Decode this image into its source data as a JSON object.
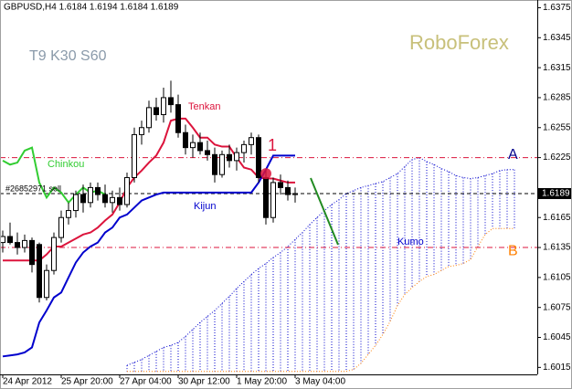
{
  "chart_data": {
    "type": "candlestick",
    "header": "GBPUSD,H4  1.6184 1.6194 1.6184 1.6189",
    "settings_label": "T9 K30 S60",
    "watermark": "RoboForex",
    "ylim": [
      1.6008,
      1.638
    ],
    "yticks": [
      1.6015,
      1.6045,
      1.6075,
      1.6105,
      1.6135,
      1.6165,
      1.6225,
      1.6255,
      1.6285,
      1.6315,
      1.6345,
      1.6375
    ],
    "xticks": [
      {
        "value": 0,
        "label": "24 Apr 2012"
      },
      {
        "value": 8,
        "label": "25 Apr 20:00"
      },
      {
        "value": 16,
        "label": "27 Apr 04:00"
      },
      {
        "value": 24,
        "label": "30 Apr 12:00"
      },
      {
        "value": 32,
        "label": "1 May 20:00"
      },
      {
        "value": 40,
        "label": "3 May 04:00"
      }
    ],
    "open": [
      1.614,
      1.6146,
      1.614,
      1.6135,
      1.6142,
      1.6138,
      1.6085,
      1.6112,
      1.6145,
      1.6165,
      1.6172,
      1.6188,
      1.618,
      1.6195,
      1.6188,
      1.618,
      1.6185,
      1.6178,
      1.6205,
      1.6248,
      1.6255,
      1.6275,
      1.6268,
      1.6285,
      1.6278,
      1.625,
      1.6235,
      1.624,
      1.6232,
      1.6228,
      1.6208,
      1.6228,
      1.6222,
      1.623,
      1.6238,
      1.6245,
      1.6205,
      1.6165,
      1.62,
      1.6195,
      1.6188
    ],
    "high": [
      1.6152,
      1.616,
      1.615,
      1.6148,
      1.6145,
      1.614,
      1.6118,
      1.615,
      1.6172,
      1.618,
      1.6192,
      1.6198,
      1.62,
      1.62,
      1.6198,
      1.6192,
      1.6195,
      1.621,
      1.6255,
      1.6262,
      1.6282,
      1.6285,
      1.6295,
      1.6302,
      1.6288,
      1.6258,
      1.6248,
      1.625,
      1.6242,
      1.6235,
      1.6232,
      1.6238,
      1.6235,
      1.6242,
      1.625,
      1.6248,
      1.6212,
      1.6205,
      1.6208,
      1.6202,
      1.6195
    ],
    "low": [
      1.613,
      1.6138,
      1.6128,
      1.613,
      1.611,
      1.608,
      1.6082,
      1.6108,
      1.614,
      1.6158,
      1.6165,
      1.617,
      1.6175,
      1.6182,
      1.6175,
      1.617,
      1.6172,
      1.6175,
      1.62,
      1.6238,
      1.625,
      1.6262,
      1.626,
      1.627,
      1.6245,
      1.6228,
      1.6225,
      1.6228,
      1.6222,
      1.62,
      1.6205,
      1.6215,
      1.6212,
      1.622,
      1.6228,
      1.62,
      1.6158,
      1.616,
      1.6188,
      1.6182,
      1.618
    ],
    "close": [
      1.6146,
      1.614,
      1.6135,
      1.6142,
      1.6118,
      1.6085,
      1.6112,
      1.6145,
      1.6165,
      1.6172,
      1.6188,
      1.618,
      1.6195,
      1.6188,
      1.618,
      1.6185,
      1.6178,
      1.6205,
      1.6248,
      1.6255,
      1.6275,
      1.6268,
      1.6285,
      1.6278,
      1.625,
      1.6235,
      1.624,
      1.6232,
      1.6228,
      1.6208,
      1.6228,
      1.6222,
      1.623,
      1.6238,
      1.6245,
      1.6205,
      1.6165,
      1.62,
      1.6195,
      1.6188,
      1.6189
    ],
    "bull_color": "#ffffff",
    "bear_color": "#000000",
    "lines": [
      {
        "name": "Tenkan",
        "color": "#dc143c",
        "values": [
          1.6122,
          1.6122,
          1.6122,
          1.6122,
          1.6122,
          1.6122,
          1.6128,
          1.6136,
          1.6136,
          1.614,
          1.6144,
          1.6148,
          1.615,
          1.6155,
          1.6162,
          1.6168,
          1.618,
          1.6195,
          1.6205,
          1.6212,
          1.622,
          1.6227,
          1.624,
          1.6262,
          1.6264,
          1.6264,
          1.6255,
          1.6245,
          1.6245,
          1.6238,
          1.6236,
          1.6236,
          1.6225,
          1.6215,
          1.6213,
          1.6205,
          1.6204,
          1.6204,
          1.6202,
          1.62,
          1.62
        ]
      },
      {
        "name": "Kijun",
        "color": "#0000cd",
        "values": [
          1.6026,
          1.6027,
          1.6028,
          1.603,
          1.6035,
          1.606,
          1.6072,
          1.6085,
          1.609,
          1.6105,
          1.612,
          1.613,
          1.6136,
          1.614,
          1.615,
          1.6155,
          1.6165,
          1.6168,
          1.6175,
          1.6182,
          1.6185,
          1.6188,
          1.619,
          1.619,
          1.619,
          1.619,
          1.619,
          1.619,
          1.619,
          1.619,
          1.619,
          1.619,
          1.619,
          1.619,
          1.619,
          1.62,
          1.6213,
          1.6227,
          1.6227,
          1.6227,
          1.6227
        ]
      },
      {
        "name": "Chinkou",
        "color": "#32cd32",
        "values": [
          1.6222,
          1.6218,
          1.622,
          1.6232,
          1.6235,
          1.62,
          1.6185,
          1.6195,
          1.619,
          1.618,
          1.6188,
          1.6195,
          1.619,
          1.6192,
          1.6188
        ]
      }
    ],
    "span_a": {
      "color": "#0000cd",
      "values": [
        null,
        null,
        null,
        null,
        null,
        null,
        null,
        null,
        null,
        null,
        null,
        null,
        null,
        null,
        null,
        null,
        null,
        1.6017,
        1.602,
        1.6023,
        1.6027,
        1.6031,
        1.6035,
        1.6037,
        1.604,
        1.6046,
        1.6053,
        1.606,
        1.6066,
        1.6072,
        1.6079,
        1.6086,
        1.6094,
        1.6101,
        1.6108,
        1.6114,
        1.6119,
        1.6125,
        1.613,
        1.6136,
        1.6143,
        1.615,
        1.6158,
        1.6165,
        1.6172,
        1.6178,
        1.6183,
        1.6189,
        1.6192,
        1.6195,
        1.6197,
        1.6199,
        1.6201,
        1.6205,
        1.6209,
        1.6216,
        1.6223,
        1.6225,
        1.6221,
        1.6218,
        1.6214,
        1.6211,
        1.6207,
        1.6205,
        1.6204,
        1.6205,
        1.6207,
        1.6209,
        1.6212,
        1.6213,
        1.6213
      ]
    },
    "span_b": {
      "color": "#ff7f00",
      "values": [
        null,
        null,
        null,
        null,
        null,
        null,
        null,
        null,
        null,
        null,
        null,
        null,
        null,
        null,
        null,
        null,
        null,
        1.6011,
        1.6011,
        1.6011,
        1.6011,
        1.6011,
        1.6011,
        1.6011,
        1.6011,
        1.6011,
        1.6011,
        1.6011,
        1.6011,
        1.6011,
        1.6011,
        1.6011,
        1.6011,
        1.6011,
        1.6011,
        1.6011,
        1.6011,
        1.6011,
        1.6011,
        1.6011,
        1.6011,
        1.6011,
        1.6011,
        1.6011,
        1.6011,
        1.6011,
        1.6011,
        1.6011,
        1.6013,
        1.6019,
        1.6028,
        1.6037,
        1.6048,
        1.6061,
        1.6077,
        1.6088,
        1.6095,
        1.6101,
        1.6106,
        1.6108,
        1.6112,
        1.6116,
        1.6117,
        1.6119,
        1.6123,
        1.6136,
        1.6148,
        1.6154,
        1.6154,
        1.6154,
        1.6154
      ]
    },
    "cloud": {
      "label": "Kumo",
      "color": "#0000cd"
    },
    "levels": [
      {
        "label": "A",
        "value": 1.6225,
        "color": "#dc143c",
        "label_color": "#00008b"
      },
      {
        "label": "B",
        "value": 1.6135,
        "color": "#dc143c",
        "label_color": "#ff7f00"
      }
    ],
    "order": {
      "label": "#26852971 sell",
      "value": 1.6189
    },
    "last_price": 1.6189,
    "signal": {
      "label": "1",
      "x": 36,
      "value": 1.6209,
      "color": "#dc143c"
    }
  }
}
